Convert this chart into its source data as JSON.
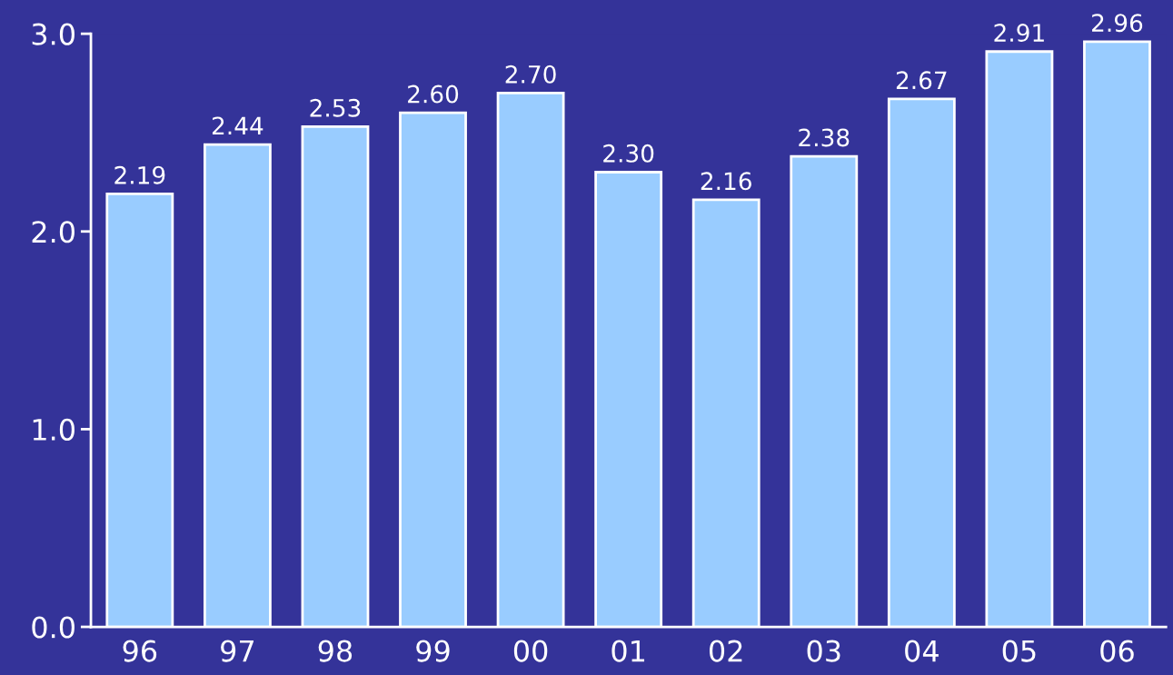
{
  "chart_data": {
    "type": "bar",
    "categories": [
      "96",
      "97",
      "98",
      "99",
      "00",
      "01",
      "02",
      "03",
      "04",
      "05",
      "06"
    ],
    "values": [
      2.19,
      2.44,
      2.53,
      2.6,
      2.7,
      2.3,
      2.16,
      2.38,
      2.67,
      2.91,
      2.96
    ],
    "value_labels": [
      "2.19",
      "2.44",
      "2.53",
      "2.60",
      "2.70",
      "2.30",
      "2.16",
      "2.38",
      "2.67",
      "2.91",
      "2.96"
    ],
    "color": "#99ccff",
    "ylim": [
      0,
      3.0
    ],
    "yticks": [
      {
        "value": 0,
        "label": "0.0"
      },
      {
        "value": 1,
        "label": "1.0"
      },
      {
        "value": 2,
        "label": "2.0"
      },
      {
        "value": 3,
        "label": "3.0"
      }
    ],
    "grid": false
  }
}
